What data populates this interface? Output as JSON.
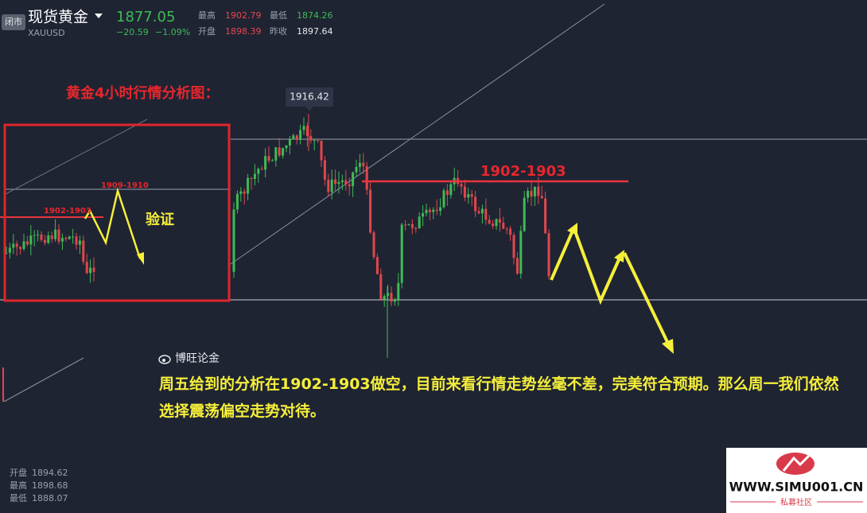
{
  "header": {
    "status": "闭市",
    "name": "现货黄金",
    "symbol": "XAUUSD",
    "price": "1877.05",
    "change": "−20.59",
    "change_pct": "−1.09%",
    "stats": [
      {
        "label": "最高",
        "value": "1902.79"
      },
      {
        "label": "开盘",
        "value": "1898.39"
      },
      {
        "label": "最低",
        "value": "1874.26"
      },
      {
        "label": "昨收",
        "value": "1897.64"
      }
    ]
  },
  "annotations": {
    "title": "黄金4小时行情分析图：",
    "peak_label": "1916.42",
    "level_label": "1902-1903",
    "small_level_label": "1902-1903",
    "small_target_label": "1909-1910",
    "verify": "验证",
    "source": "博旺论金",
    "comment": "周五给到的分析在1902-1903做空，目前来看行情走势丝毫不差，完美符合预期。那么周一我们依然选择震荡偏空走势对待。"
  },
  "footer": {
    "ohlc": [
      {
        "label": "开盘",
        "value": "1894.62"
      },
      {
        "label": "最高",
        "value": "1898.68"
      },
      {
        "label": "最低",
        "value": "1888.07"
      }
    ]
  },
  "logo": {
    "url": "WWW.SIMU001.CN",
    "caption": "私募社区"
  }
}
